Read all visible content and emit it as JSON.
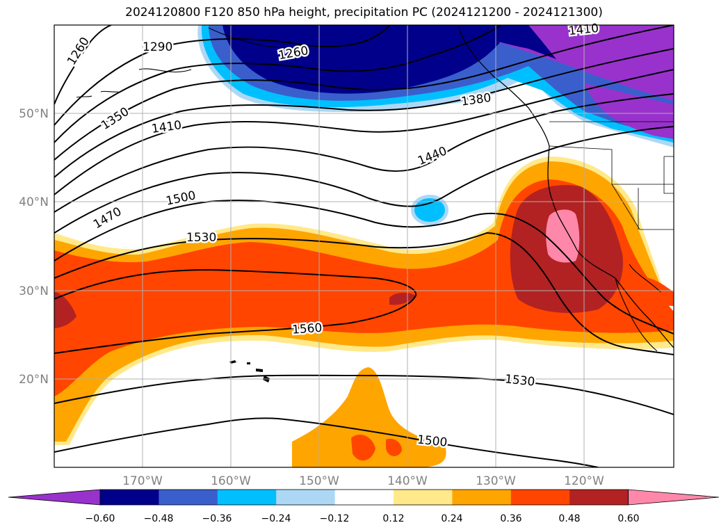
{
  "title": "2024120800 F120 850 hPa height, precipitation PC (2024121200 - 2024121300)",
  "latitude_labels": [
    "50°N",
    "40°N",
    "30°N",
    "20°N"
  ],
  "longitude_labels": [
    "170°W",
    "160°W",
    "150°W",
    "140°W",
    "130°W",
    "120°W"
  ],
  "contour_labels": [
    "1260",
    "1290",
    "1260",
    "1350",
    "1410",
    "1380",
    "1440",
    "1470",
    "1500",
    "1530",
    "1560",
    "1530",
    "1500",
    "1410"
  ],
  "colorbar": {
    "ticks": [
      "−0.60",
      "−0.48",
      "−0.36",
      "−0.24",
      "−0.12",
      "0.12",
      "0.24",
      "0.36",
      "0.48",
      "0.60"
    ],
    "colors": [
      "#9932cc",
      "#00008b",
      "#3a5fcd",
      "#00bfff",
      "#add8f5",
      "#ffffff",
      "#ffe98a",
      "#ffa500",
      "#ff4500",
      "#b22222",
      "#ff88aa"
    ]
  },
  "colors": {
    "negative_strong": "#9932cc",
    "negative_2": "#00008b",
    "negative_3": "#3a5fcd",
    "negative_4": "#00bfff",
    "negative_5": "#add8f5",
    "positive_1": "#ffe98a",
    "positive_2": "#ffa500",
    "positive_3": "#ff4500",
    "positive_4": "#b22222",
    "positive_5": "#ff88aa",
    "grid": "#b0b0b0",
    "contour": "#000000"
  }
}
